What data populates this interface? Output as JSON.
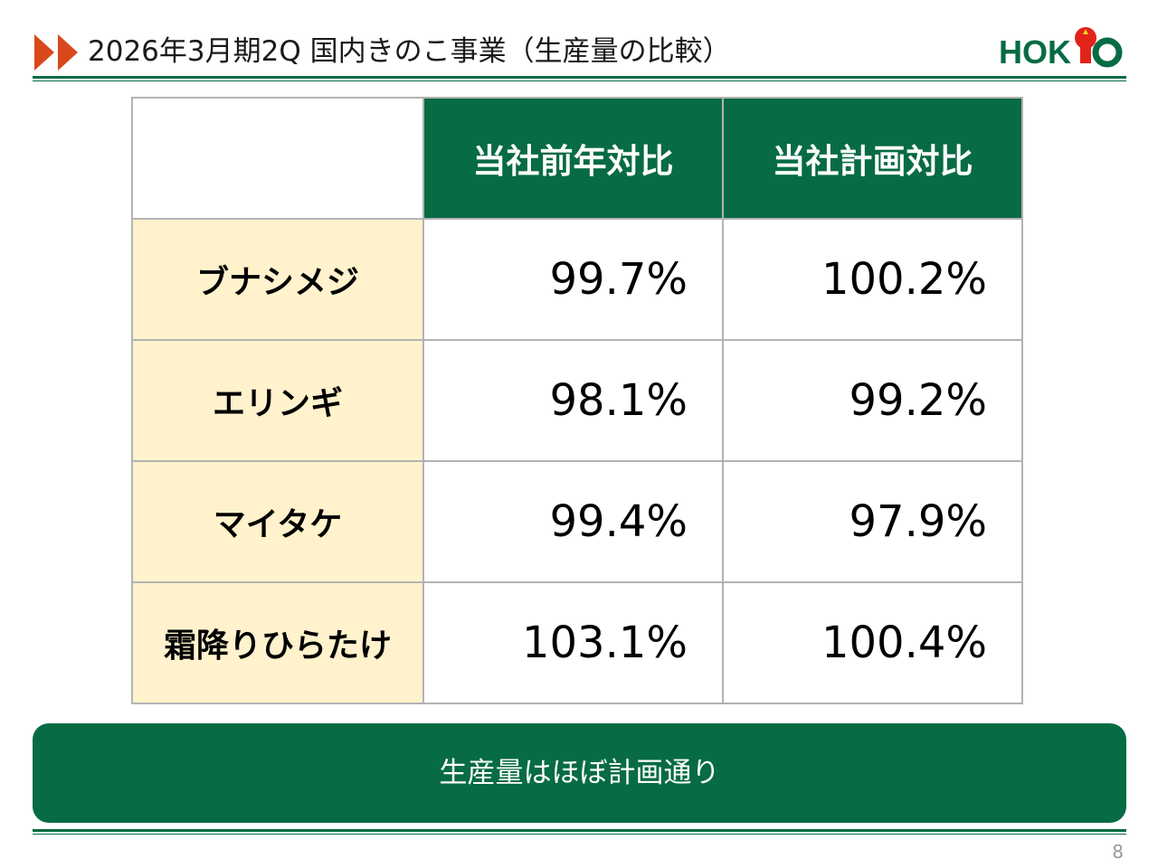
{
  "header": {
    "title": "2026年3月期2Q 国内きのこ事業（生産量の比較）",
    "logo_text": "HOKTO"
  },
  "table": {
    "columns": [
      "当社前年対比",
      "当社計画対比"
    ],
    "rows": [
      {
        "label": "ブナシメジ",
        "values": [
          "99.7%",
          "100.2%"
        ]
      },
      {
        "label": "エリンギ",
        "values": [
          "98.1%",
          "99.2%"
        ]
      },
      {
        "label": "マイタケ",
        "values": [
          "99.4%",
          "97.9%"
        ]
      },
      {
        "label": "霜降りひらたけ",
        "values": [
          "103.1%",
          "100.4%"
        ]
      }
    ]
  },
  "summary": "生産量はほぼ計画通り",
  "page_number": "8",
  "colors": {
    "brand_green": "#076b44",
    "label_bg": "#fff2cc",
    "arrow_red": "#d9481c",
    "logo_red": "#e2231a"
  },
  "icons": [
    "double-arrow-icon",
    "hokto-logo"
  ]
}
